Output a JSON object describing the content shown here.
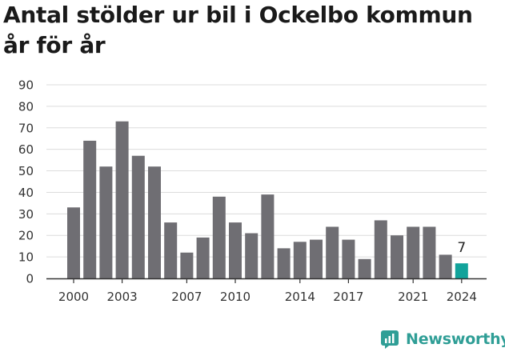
{
  "title": "Antal stölder ur bil i Ockelbo kommun år för år",
  "brand": {
    "name": "Newsworthy",
    "icon": "newsworthy-logo-icon"
  },
  "colors": {
    "bar": "#6f6e73",
    "highlight": "#11a39b",
    "grid": "#dcdcdc",
    "axis": "#333333",
    "brand": "#2f9e96"
  },
  "chart_data": {
    "type": "bar",
    "title": "Antal stölder ur bil i Ockelbo kommun år för år",
    "xlabel": "",
    "ylabel": "",
    "ylim": [
      0,
      90
    ],
    "yticks": [
      0,
      10,
      20,
      30,
      40,
      50,
      60,
      70,
      80,
      90
    ],
    "xtick_labels": [
      "2000",
      "2003",
      "2007",
      "2010",
      "2014",
      "2017",
      "2021",
      "2024"
    ],
    "categories": [
      "2000",
      "2001",
      "2002",
      "2003",
      "2004",
      "2005",
      "2006",
      "2007",
      "2008",
      "2009",
      "2010",
      "2011",
      "2012",
      "2013",
      "2014",
      "2015",
      "2016",
      "2017",
      "2018",
      "2019",
      "2020",
      "2021",
      "2022",
      "2023",
      "2024"
    ],
    "values": [
      33,
      64,
      52,
      73,
      57,
      52,
      26,
      12,
      19,
      38,
      26,
      21,
      39,
      14,
      17,
      18,
      24,
      18,
      9,
      27,
      20,
      24,
      24,
      11,
      7
    ],
    "highlight": {
      "category": "2024",
      "label": "7"
    },
    "grid": true,
    "legend": "none"
  }
}
